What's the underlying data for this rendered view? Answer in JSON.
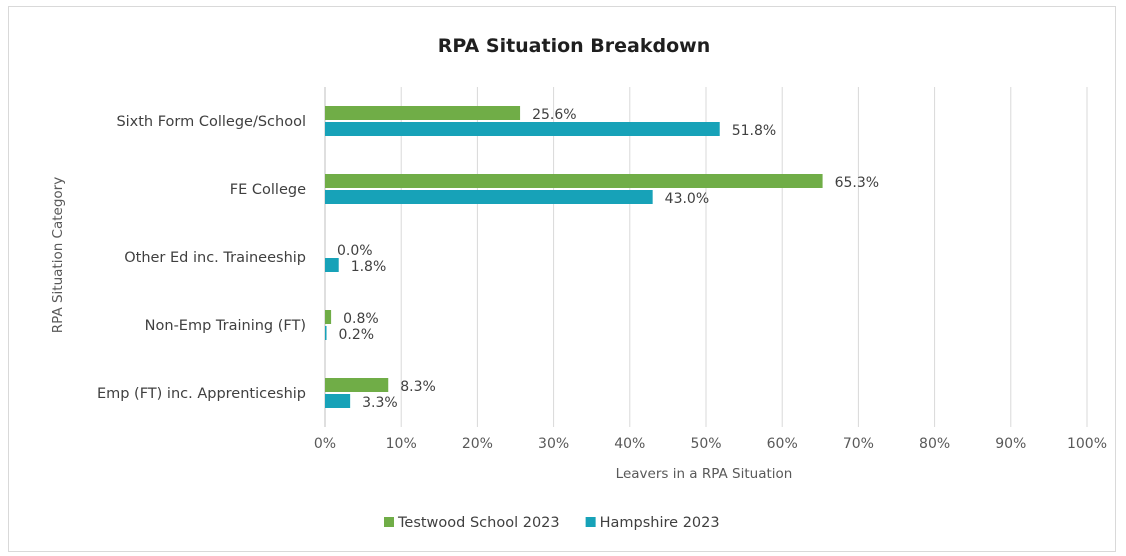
{
  "chart_data": {
    "type": "bar",
    "orientation": "horizontal",
    "title": "RPA Situation Breakdown",
    "xlabel": "Leavers in a RPA Situation",
    "ylabel": "RPA Situation Category",
    "categories": [
      "Sixth Form College/School",
      "FE College",
      "Other Ed inc. Traineeship",
      "Non-Emp Training (FT)",
      "Emp (FT) inc. Apprenticeship"
    ],
    "series": [
      {
        "name": "Testwood School 2023",
        "color": "#70ad47",
        "values": [
          25.6,
          65.3,
          0.0,
          0.8,
          8.3
        ]
      },
      {
        "name": "Hampshire 2023",
        "color": "#17a2b8",
        "values": [
          51.8,
          43.0,
          1.8,
          0.2,
          3.3
        ]
      }
    ],
    "xlim": [
      0,
      100
    ],
    "xticks": [
      "0%",
      "10%",
      "20%",
      "30%",
      "40%",
      "50%",
      "60%",
      "70%",
      "80%",
      "90%",
      "100%"
    ],
    "value_suffix": "%",
    "grid": "vertical",
    "legend": "bottom"
  }
}
